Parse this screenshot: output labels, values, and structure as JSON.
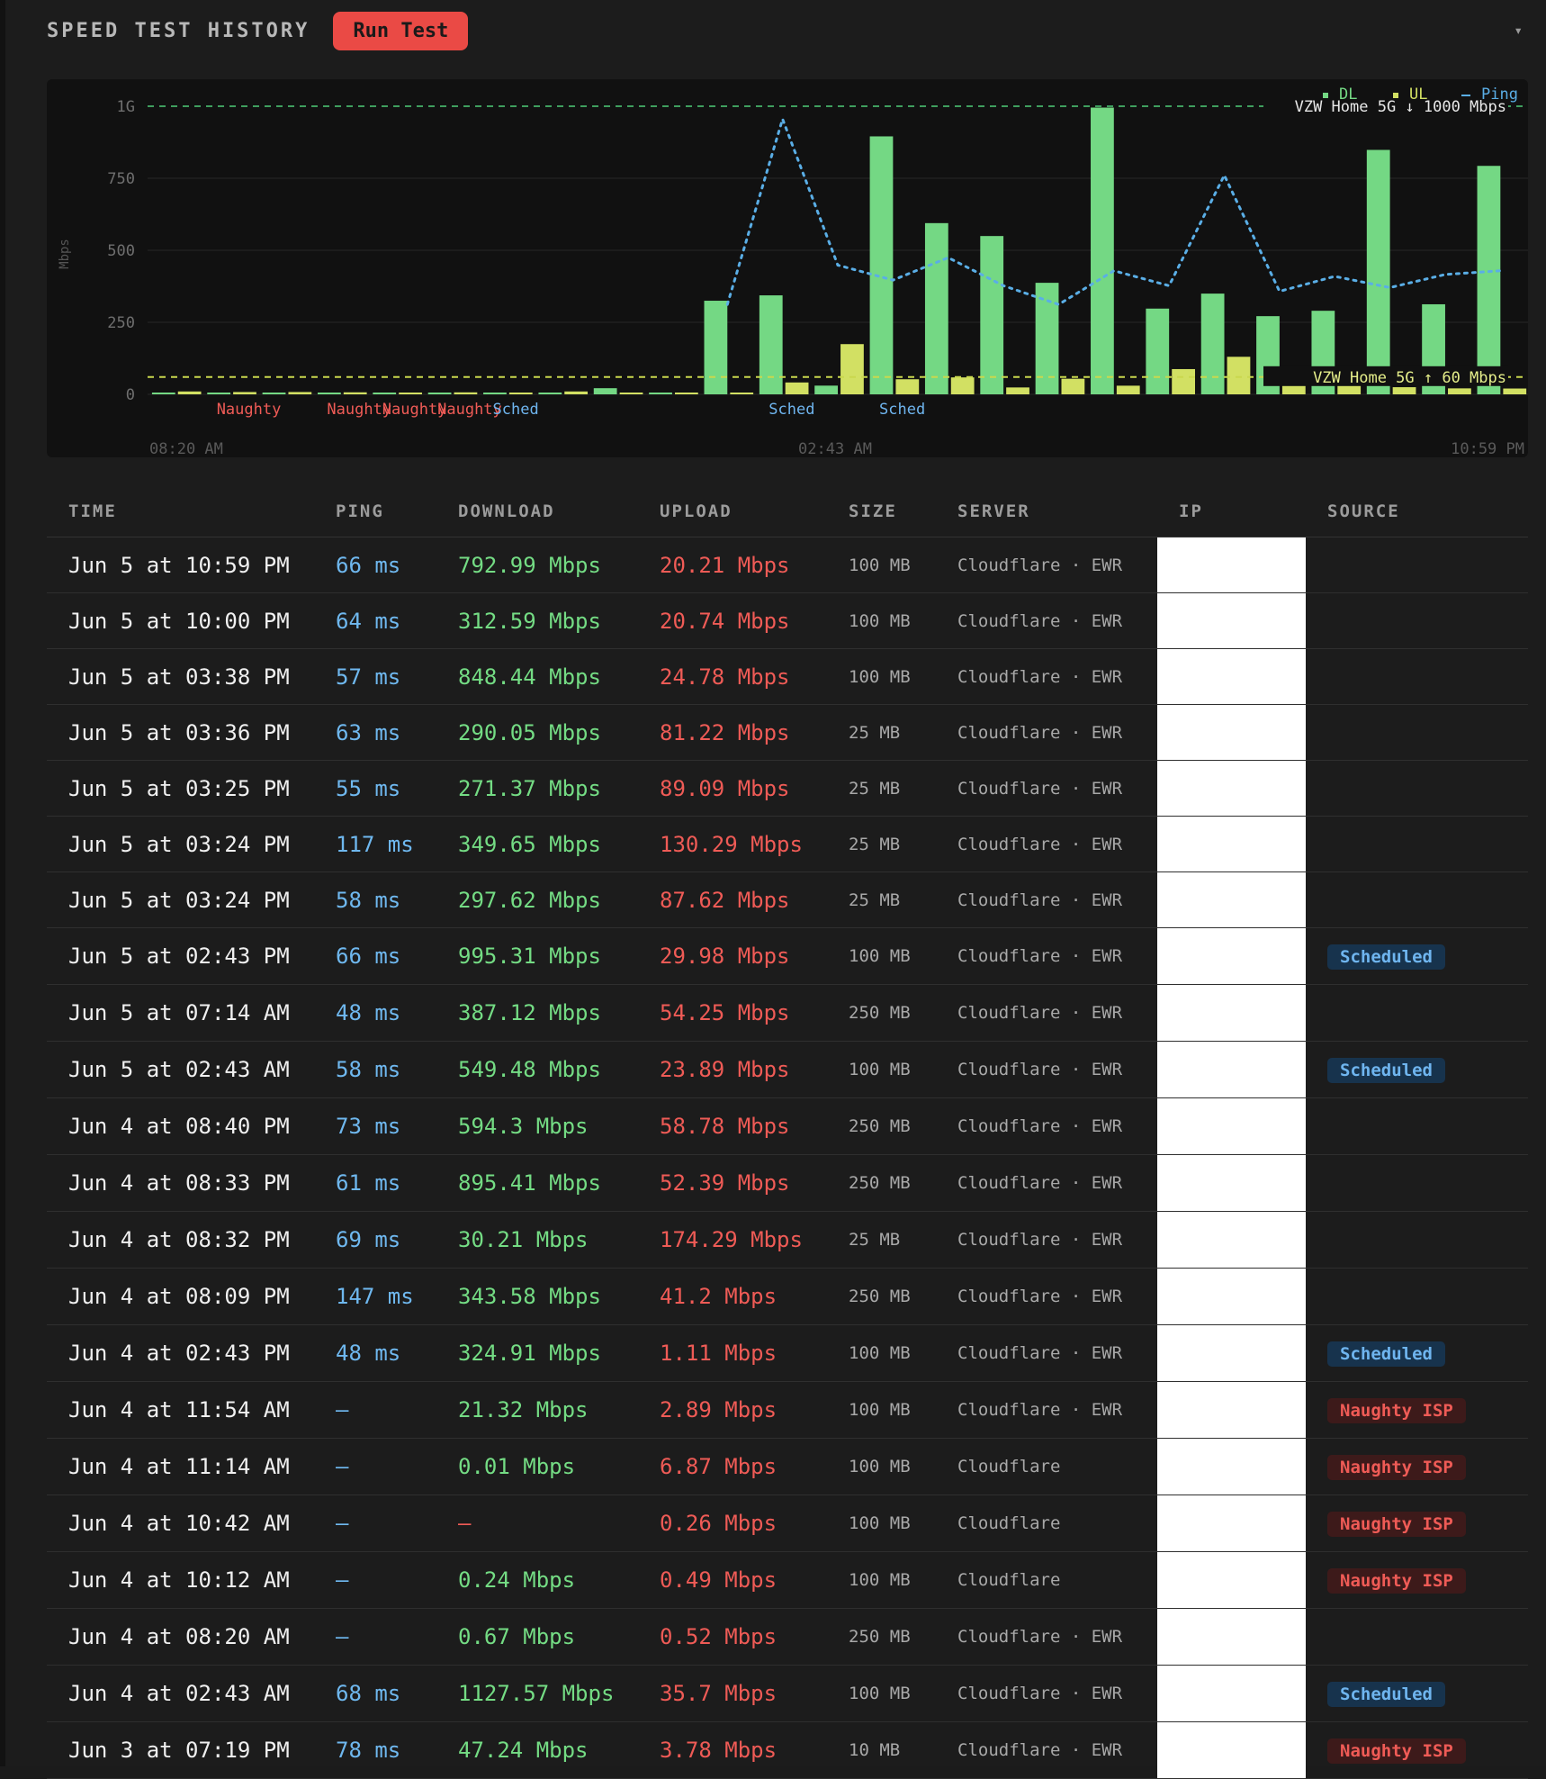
{
  "header": {
    "title": "SPEED TEST HISTORY",
    "run_button": "Run Test",
    "collapse_icon": "▾"
  },
  "chart_data": {
    "type": "bar",
    "ylabel": "Mbps",
    "ylim": [
      0,
      1000
    ],
    "yticks": [
      "0",
      "250",
      "500",
      "750",
      "1G"
    ],
    "x_ticks": [
      "08:20 AM",
      "02:43 AM",
      "10:59 PM"
    ],
    "legend": {
      "dl": "DL",
      "ul": "UL",
      "ping": "Ping",
      "placement": "top-right"
    },
    "plans": [
      {
        "label": "VZW Home 5G ↓ 1000 Mbps",
        "value": 1000,
        "color": "#3f9e5e"
      },
      {
        "label": "VZW Home 5G ↑ 60 Mbps",
        "value": 60,
        "color": "#c9d84e"
      }
    ],
    "annotations": [
      {
        "text": "Naughty",
        "index": 1,
        "color": "#ef5b56"
      },
      {
        "text": "Naughty",
        "index": 3,
        "color": "#ef5b56"
      },
      {
        "text": "Naughty",
        "index": 4,
        "color": "#ef5b56"
      },
      {
        "text": "Naughty",
        "index": 5,
        "color": "#ef5b56"
      },
      {
        "text": "Sched",
        "index": 6,
        "color": "#6fb5ef"
      },
      {
        "text": "Sched",
        "index": 11,
        "color": "#6fb5ef"
      },
      {
        "text": "Sched",
        "index": 13,
        "color": "#6fb5ef"
      }
    ],
    "series": [
      {
        "name": "DL",
        "color": "#74d884",
        "values": [
          2,
          3,
          4,
          3,
          0.24,
          0.01,
          0,
          0,
          21.32,
          0.67,
          324.91,
          343.58,
          30.21,
          895.41,
          594.3,
          549.48,
          387.12,
          995.31,
          297.62,
          349.65,
          271.37,
          290.05,
          848.44,
          312.59,
          792.99
        ]
      },
      {
        "name": "UL",
        "color": "#d2e063",
        "values": [
          10,
          8,
          8,
          7,
          0.49,
          6.87,
          0.26,
          10,
          2.89,
          0.52,
          1.11,
          41.2,
          174.29,
          52.39,
          58.78,
          23.89,
          54.25,
          29.98,
          87.62,
          130.29,
          89.09,
          81.22,
          24.78,
          20.74,
          20.21
        ]
      },
      {
        "name": "Ping",
        "color": "#5aaee6",
        "values": [
          null,
          null,
          null,
          null,
          null,
          null,
          null,
          null,
          null,
          null,
          48,
          147,
          69,
          61,
          73,
          58,
          48,
          66,
          58,
          117,
          55,
          63,
          57,
          64,
          66
        ]
      }
    ]
  },
  "table": {
    "columns": [
      "TIME",
      "PING",
      "DOWNLOAD",
      "UPLOAD",
      "SIZE",
      "SERVER",
      "IP",
      "SOURCE"
    ],
    "rows": [
      {
        "time": "Jun 5 at 10:59 PM",
        "ping": "66 ms",
        "dl": "792.99 Mbps",
        "ul": "20.21 Mbps",
        "size": "100 MB",
        "server": "Cloudflare · EWR",
        "source": ""
      },
      {
        "time": "Jun 5 at 10:00 PM",
        "ping": "64 ms",
        "dl": "312.59 Mbps",
        "ul": "20.74 Mbps",
        "size": "100 MB",
        "server": "Cloudflare · EWR",
        "source": ""
      },
      {
        "time": "Jun 5 at 03:38 PM",
        "ping": "57 ms",
        "dl": "848.44 Mbps",
        "ul": "24.78 Mbps",
        "size": "100 MB",
        "server": "Cloudflare · EWR",
        "source": ""
      },
      {
        "time": "Jun 5 at 03:36 PM",
        "ping": "63 ms",
        "dl": "290.05 Mbps",
        "ul": "81.22 Mbps",
        "size": "25 MB",
        "server": "Cloudflare · EWR",
        "source": ""
      },
      {
        "time": "Jun 5 at 03:25 PM",
        "ping": "55 ms",
        "dl": "271.37 Mbps",
        "ul": "89.09 Mbps",
        "size": "25 MB",
        "server": "Cloudflare · EWR",
        "source": ""
      },
      {
        "time": "Jun 5 at 03:24 PM",
        "ping": "117 ms",
        "dl": "349.65 Mbps",
        "ul": "130.29 Mbps",
        "size": "25 MB",
        "server": "Cloudflare · EWR",
        "source": ""
      },
      {
        "time": "Jun 5 at 03:24 PM",
        "ping": "58 ms",
        "dl": "297.62 Mbps",
        "ul": "87.62 Mbps",
        "size": "25 MB",
        "server": "Cloudflare · EWR",
        "source": ""
      },
      {
        "time": "Jun 5 at 02:43 PM",
        "ping": "66 ms",
        "dl": "995.31 Mbps",
        "ul": "29.98 Mbps",
        "size": "100 MB",
        "server": "Cloudflare · EWR",
        "source": "Scheduled"
      },
      {
        "time": "Jun 5 at 07:14 AM",
        "ping": "48 ms",
        "dl": "387.12 Mbps",
        "ul": "54.25 Mbps",
        "size": "250 MB",
        "server": "Cloudflare · EWR",
        "source": ""
      },
      {
        "time": "Jun 5 at 02:43 AM",
        "ping": "58 ms",
        "dl": "549.48 Mbps",
        "ul": "23.89 Mbps",
        "size": "100 MB",
        "server": "Cloudflare · EWR",
        "source": "Scheduled"
      },
      {
        "time": "Jun 4 at 08:40 PM",
        "ping": "73 ms",
        "dl": "594.3 Mbps",
        "ul": "58.78 Mbps",
        "size": "250 MB",
        "server": "Cloudflare · EWR",
        "source": ""
      },
      {
        "time": "Jun 4 at 08:33 PM",
        "ping": "61 ms",
        "dl": "895.41 Mbps",
        "ul": "52.39 Mbps",
        "size": "250 MB",
        "server": "Cloudflare · EWR",
        "source": ""
      },
      {
        "time": "Jun 4 at 08:32 PM",
        "ping": "69 ms",
        "dl": "30.21 Mbps",
        "ul": "174.29 Mbps",
        "size": "25 MB",
        "server": "Cloudflare · EWR",
        "source": ""
      },
      {
        "time": "Jun 4 at 08:09 PM",
        "ping": "147 ms",
        "dl": "343.58 Mbps",
        "ul": "41.2 Mbps",
        "size": "250 MB",
        "server": "Cloudflare · EWR",
        "source": ""
      },
      {
        "time": "Jun 4 at 02:43 PM",
        "ping": "48 ms",
        "dl": "324.91 Mbps",
        "ul": "1.11 Mbps",
        "size": "100 MB",
        "server": "Cloudflare · EWR",
        "source": "Scheduled"
      },
      {
        "time": "Jun 4 at 11:54 AM",
        "ping": "—",
        "dl": "21.32 Mbps",
        "ul": "2.89 Mbps",
        "size": "100 MB",
        "server": "Cloudflare · EWR",
        "source": "Naughty ISP"
      },
      {
        "time": "Jun 4 at 11:14 AM",
        "ping": "—",
        "dl": "0.01 Mbps",
        "ul": "6.87 Mbps",
        "size": "100 MB",
        "server": "Cloudflare",
        "source": "Naughty ISP"
      },
      {
        "time": "Jun 4 at 10:42 AM",
        "ping": "—",
        "dl": "—",
        "ul": "0.26 Mbps",
        "size": "100 MB",
        "server": "Cloudflare",
        "source": "Naughty ISP"
      },
      {
        "time": "Jun 4 at 10:12 AM",
        "ping": "—",
        "dl": "0.24 Mbps",
        "ul": "0.49 Mbps",
        "size": "100 MB",
        "server": "Cloudflare",
        "source": "Naughty ISP"
      },
      {
        "time": "Jun 4 at 08:20 AM",
        "ping": "—",
        "dl": "0.67 Mbps",
        "ul": "0.52 Mbps",
        "size": "250 MB",
        "server": "Cloudflare · EWR",
        "source": ""
      },
      {
        "time": "Jun 4 at 02:43 AM",
        "ping": "68 ms",
        "dl": "1127.57 Mbps",
        "ul": "35.7 Mbps",
        "size": "100 MB",
        "server": "Cloudflare · EWR",
        "source": "Scheduled"
      },
      {
        "time": "Jun 3 at 07:19 PM",
        "ping": "78 ms",
        "dl": "47.24 Mbps",
        "ul": "3.78 Mbps",
        "size": "10 MB",
        "server": "Cloudflare · EWR",
        "source": "Naughty ISP"
      }
    ]
  }
}
